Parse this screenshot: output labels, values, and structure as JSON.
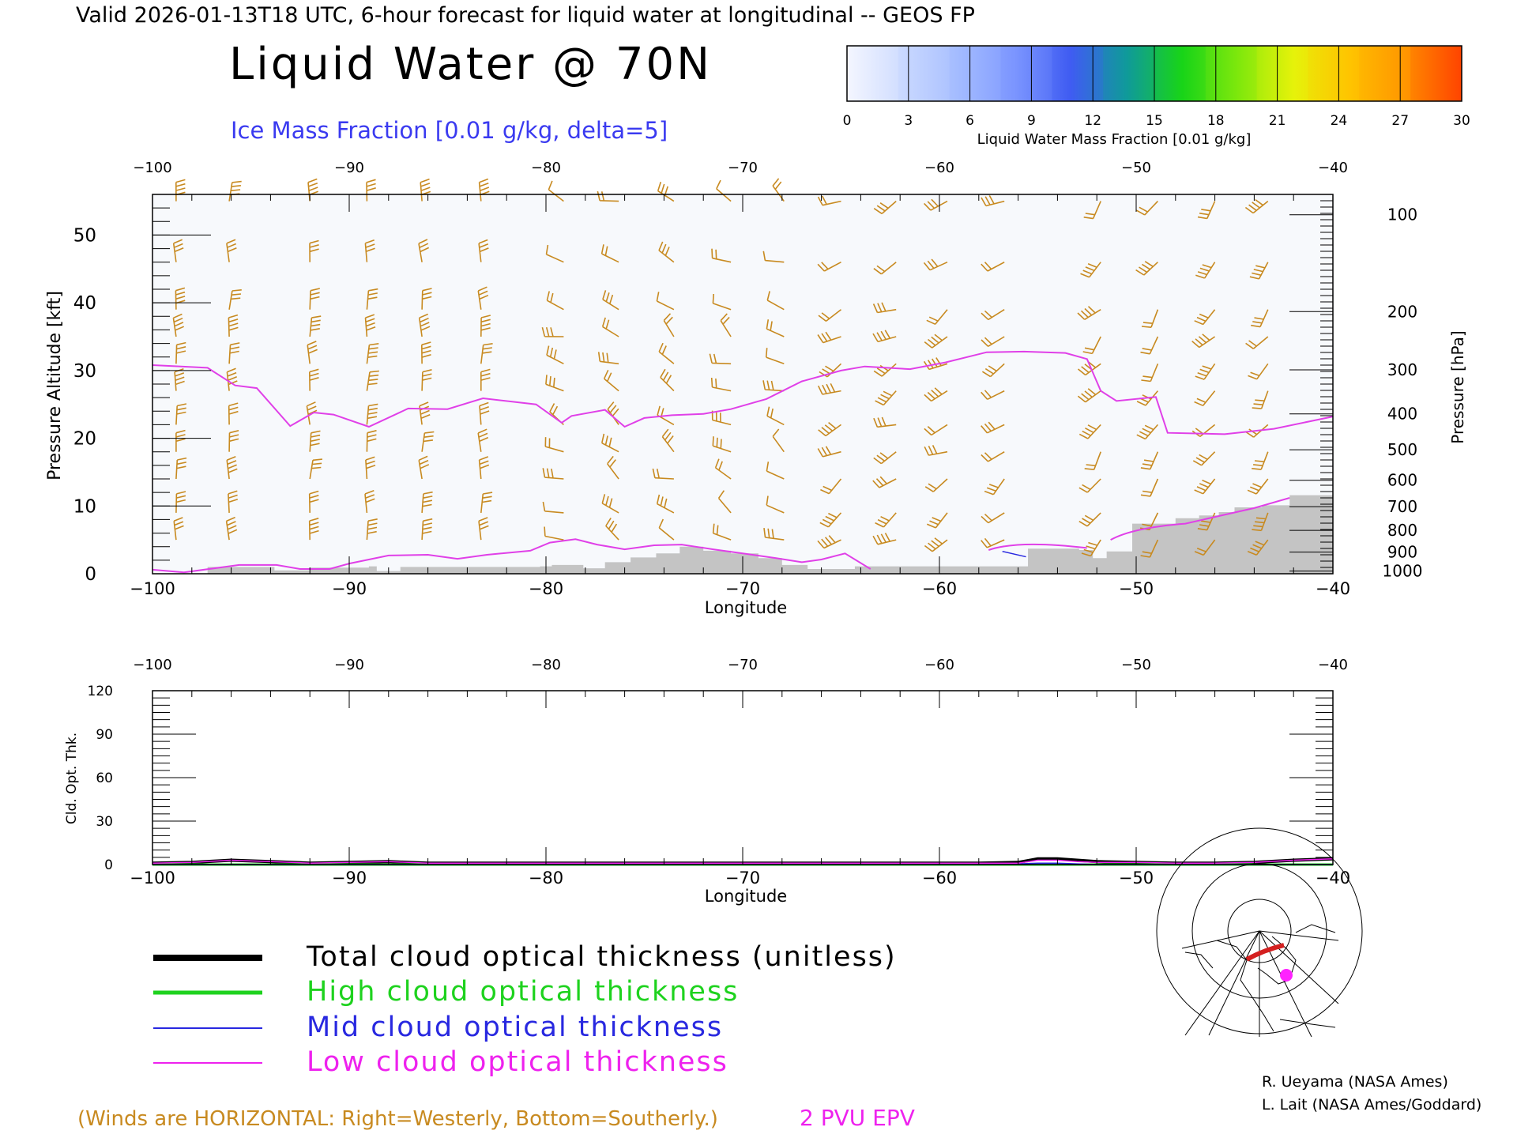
{
  "header": {
    "valid_line": "Valid 2026-01-13T18 UTC, 6-hour forecast for liquid water at longitudinal -- GEOS FP",
    "title": "Liquid Water @ 70N",
    "subtitle": "Ice Mass Fraction [0.01 g/kg, delta=5]"
  },
  "colorbar": {
    "label": "Liquid Water Mass Fraction [0.01 g/kg]",
    "ticks": [
      "0",
      "3",
      "6",
      "9",
      "12",
      "15",
      "18",
      "21",
      "24",
      "27",
      "30"
    ],
    "colors": [
      "#f4f6ff",
      "#c9d8ff",
      "#a3bbff",
      "#7b95ff",
      "#3f5cf2",
      "#0f9a9a",
      "#18d418",
      "#7ee80c",
      "#e6f20a",
      "#ffc400",
      "#ff9600",
      "#ff4400"
    ]
  },
  "colors": {
    "wind_barb": "#c88a20",
    "epv": "#e040e8",
    "terrain": "#c4c4c4",
    "total": "#000000",
    "high": "#1ed21e",
    "mid": "#2828e0",
    "low": "#ee22ee"
  },
  "chart_data": [
    {
      "type": "heatmap",
      "xlabel": "Longitude",
      "ylabel_left": "Pressure Altitude [kft]",
      "ylabel_right": "Pressure [hPa]",
      "xlim": [
        -100,
        -40
      ],
      "ylim": [
        0,
        56
      ],
      "x_ticks": [
        "-100",
        "-90",
        "-80",
        "-70",
        "-60",
        "-50",
        "-40"
      ],
      "y_ticks": [
        "0",
        "10",
        "20",
        "30",
        "40",
        "50"
      ],
      "pressure_ticks": [
        {
          "label": "100",
          "kft": 53
        },
        {
          "label": "200",
          "kft": 38.7
        },
        {
          "label": "300",
          "kft": 30.1
        },
        {
          "label": "400",
          "kft": 23.6
        },
        {
          "label": "500",
          "kft": 18.3
        },
        {
          "label": "600",
          "kft": 13.8
        },
        {
          "label": "700",
          "kft": 9.9
        },
        {
          "label": "800",
          "kft": 6.4
        },
        {
          "label": "900",
          "kft": 3.2
        },
        {
          "label": "1000",
          "kft": 0.4
        }
      ],
      "epv_2pvu": [
        [
          -100,
          30.8
        ],
        [
          -97.2,
          30.4
        ],
        [
          -95.8,
          27.8
        ],
        [
          -94.7,
          27.4
        ],
        [
          -93.0,
          21.8
        ],
        [
          -91.8,
          23.8
        ],
        [
          -90.8,
          23.5
        ],
        [
          -89.0,
          21.7
        ],
        [
          -87.0,
          24.4
        ],
        [
          -85.0,
          24.3
        ],
        [
          -83.2,
          25.9
        ],
        [
          -80.5,
          25.0
        ],
        [
          -79.2,
          22.3
        ],
        [
          -78.7,
          23.3
        ],
        [
          -77.0,
          24.2
        ],
        [
          -76.0,
          21.7
        ],
        [
          -75.0,
          23.0
        ],
        [
          -73.6,
          23.4
        ],
        [
          -72.0,
          23.6
        ],
        [
          -70.6,
          24.3
        ],
        [
          -68.8,
          25.8
        ],
        [
          -67.0,
          28.4
        ],
        [
          -65.0,
          30.0
        ],
        [
          -63.8,
          30.6
        ],
        [
          -61.5,
          30.2
        ],
        [
          -59.7,
          31.2
        ],
        [
          -57.6,
          32.7
        ],
        [
          -55.7,
          32.8
        ],
        [
          -53.6,
          32.6
        ],
        [
          -52.5,
          31.7
        ],
        [
          -51.8,
          27.0
        ],
        [
          -51.0,
          25.5
        ],
        [
          -49.0,
          26.1
        ],
        [
          -48.4,
          20.8
        ],
        [
          -45.5,
          20.6
        ],
        [
          -43.0,
          21.4
        ],
        [
          -40.0,
          23.2
        ]
      ],
      "epv_low": [
        [
          -100,
          0.6
        ],
        [
          -98.4,
          0.2
        ],
        [
          -95.6,
          1.3
        ],
        [
          -93.7,
          1.3
        ],
        [
          -92.5,
          0.7
        ],
        [
          -91.0,
          0.7
        ],
        [
          -90.0,
          1.5
        ],
        [
          -88.0,
          2.7
        ],
        [
          -86.0,
          2.8
        ],
        [
          -84.5,
          2.2
        ],
        [
          -83.0,
          2.8
        ],
        [
          -80.8,
          3.4
        ],
        [
          -79.8,
          4.6
        ],
        [
          -78.5,
          5.1
        ],
        [
          -77.4,
          4.3
        ],
        [
          -76.0,
          3.6
        ],
        [
          -74.5,
          4.2
        ],
        [
          -73.1,
          4.3
        ],
        [
          -71.5,
          3.6
        ],
        [
          -70.0,
          3.0
        ],
        [
          -68.3,
          2.3
        ],
        [
          -67.0,
          1.7
        ],
        [
          -66.0,
          2.1
        ],
        [
          -64.8,
          3.0
        ],
        [
          -63.5,
          0.7
        ]
      ],
      "terrain_steps": [
        [
          -100,
          0
        ],
        [
          -97.2,
          1
        ],
        [
          -93.8,
          0.5
        ],
        [
          -92.0,
          0.9
        ],
        [
          -89.0,
          1.1
        ],
        [
          -88.6,
          0.4
        ],
        [
          -87.4,
          1.0
        ],
        [
          -80.3,
          1.1
        ],
        [
          -79.7,
          1.3
        ],
        [
          -78.1,
          0.8
        ],
        [
          -77.0,
          1.7
        ],
        [
          -75.7,
          2.4
        ],
        [
          -74.4,
          3.0
        ],
        [
          -73.2,
          4.0
        ],
        [
          -72.0,
          3.4
        ],
        [
          -70.6,
          3.0
        ],
        [
          -69.2,
          2.3
        ],
        [
          -68.0,
          1.3
        ],
        [
          -66.7,
          0.7
        ],
        [
          -64.3,
          1.1
        ],
        [
          -55.5,
          3.7
        ],
        [
          -52.9,
          3.5
        ],
        [
          -52.2,
          2.3
        ],
        [
          -51.5,
          3.3
        ],
        [
          -50.2,
          7.4
        ],
        [
          -48.0,
          8.2
        ],
        [
          -46.8,
          8.6
        ],
        [
          -45.8,
          9.1
        ],
        [
          -45.0,
          9.8
        ],
        [
          -43.6,
          10.1
        ],
        [
          -42.2,
          11.6
        ],
        [
          -40.0,
          11.6
        ]
      ],
      "wind_columns": [
        -98.8,
        -96.1,
        -92.0,
        -89.1,
        -86.3,
        -83.3,
        -79.1,
        -76.3,
        -73.5,
        -70.6,
        -67.9,
        -65.0,
        -62.2,
        -59.6,
        -56.7,
        -51.8,
        -48.9,
        -46.0,
        -43.3
      ],
      "wind_levels": [
        55,
        46,
        39,
        35,
        31,
        27,
        22,
        18,
        14,
        9,
        5
      ]
    },
    {
      "type": "line",
      "xlabel": "Longitude",
      "ylabel": "Cld. Opt. Thk.",
      "xlim": [
        -100,
        -40
      ],
      "ylim": [
        0,
        120
      ],
      "x_ticks": [
        "-100",
        "-90",
        "-80",
        "-70",
        "-60",
        "-50",
        "-40"
      ],
      "y_ticks": [
        "0",
        "30",
        "60",
        "90",
        "120"
      ],
      "x": [
        -100,
        -98,
        -96,
        -94,
        -92,
        -90,
        -88,
        -86,
        -84,
        -82,
        -80,
        -78,
        -76,
        -74,
        -72,
        -70,
        -68,
        -66,
        -64,
        -62,
        -60,
        -58,
        -56,
        -55,
        -54,
        -53,
        -52,
        -50,
        -48,
        -46,
        -44,
        -42,
        -40
      ],
      "series": [
        {
          "name": "Total cloud optical thickness (unitless)",
          "key": "total",
          "values": [
            1,
            1.5,
            3,
            2,
            1,
            1.5,
            2,
            1,
            1,
            1,
            1,
            1,
            1,
            1,
            1,
            1,
            1,
            1,
            1,
            1,
            1,
            1,
            1.5,
            4,
            4,
            3,
            2,
            1.5,
            1,
            1,
            1.5,
            3,
            4
          ]
        },
        {
          "name": "High cloud optical thickness",
          "key": "high",
          "values": [
            0,
            0,
            0,
            0,
            0,
            0,
            0,
            0,
            0,
            0,
            0,
            0,
            0,
            0,
            0,
            0,
            0,
            0,
            0,
            0,
            0,
            0,
            0,
            0,
            0,
            0,
            0,
            0,
            0,
            0,
            0,
            0,
            0
          ]
        },
        {
          "name": "Mid cloud optical thickness",
          "key": "mid",
          "values": [
            0,
            0,
            0,
            0,
            0,
            0,
            0,
            0,
            0,
            0,
            0,
            0,
            0,
            0,
            0,
            0,
            0,
            0,
            0,
            0,
            0,
            0,
            0.5,
            1,
            1,
            0.5,
            0,
            0,
            0,
            0,
            0,
            0,
            0
          ]
        },
        {
          "name": "Low cloud optical thickness",
          "key": "low",
          "values": [
            1,
            1.5,
            3,
            2,
            1,
            1.5,
            2,
            1,
            1,
            1,
            1,
            1,
            1,
            1,
            1,
            1,
            1,
            1,
            1,
            1,
            1,
            1,
            1,
            3,
            3,
            2,
            1.5,
            1.5,
            1,
            1,
            1.5,
            3,
            4
          ]
        }
      ]
    }
  ],
  "legend": [
    {
      "key": "total",
      "label": "Total cloud optical thickness (unitless)"
    },
    {
      "key": "high",
      "label": "High cloud optical thickness"
    },
    {
      "key": "mid",
      "label": "Mid cloud optical thickness"
    },
    {
      "key": "low",
      "label": "Low cloud optical thickness"
    }
  ],
  "footer": {
    "winds_note": "(Winds are HORIZONTAL: Right=Westerly, Bottom=Southerly.)",
    "epv_note": "2 PVU EPV",
    "credit_1": "R. Ueyama (NASA Ames)",
    "credit_2": "L. Lait (NASA Ames/Goddard)"
  },
  "inset_map": {
    "icon": "polar-stereographic-map-icon",
    "marker_color": "#ff22ff",
    "track_color": "#d42020"
  }
}
